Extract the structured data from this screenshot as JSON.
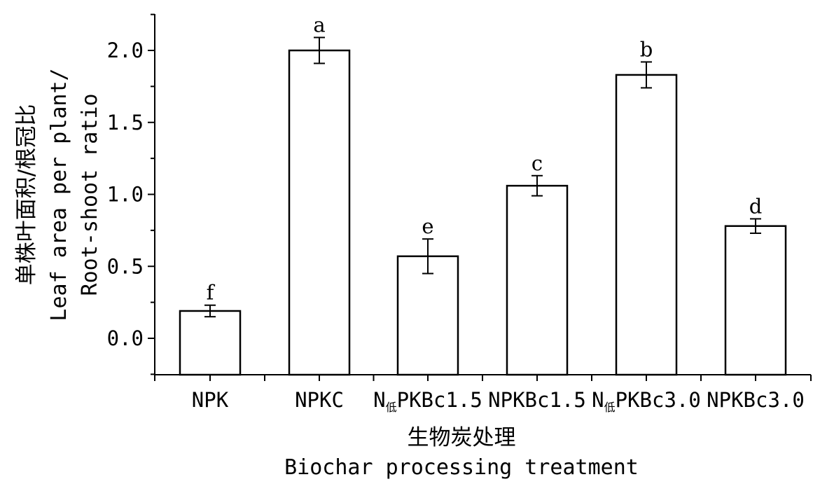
{
  "chart_data": {
    "type": "bar",
    "categories": [
      "NPK",
      "NPKC",
      "N低PKBc1.5",
      "NPKBc1.5",
      "N低PKBc3.0",
      "NPKBc3.0"
    ],
    "category_parts": [
      {
        "main": "NPK",
        "sub": "",
        "rest": ""
      },
      {
        "main": "NPKC",
        "sub": "",
        "rest": ""
      },
      {
        "main": "N",
        "sub": "低",
        "rest": "PKBc1.5"
      },
      {
        "main": "NPKBc1.5",
        "sub": "",
        "rest": ""
      },
      {
        "main": "N",
        "sub": "低",
        "rest": "PKBc3.0"
      },
      {
        "main": "NPKBc3.0",
        "sub": "",
        "rest": ""
      }
    ],
    "values": [
      0.19,
      2.0,
      0.57,
      1.06,
      1.83,
      0.78
    ],
    "errors": [
      0.04,
      0.09,
      0.12,
      0.07,
      0.09,
      0.05
    ],
    "significance": [
      "f",
      "a",
      "e",
      "c",
      "b",
      "d"
    ],
    "ylabel_lines": [
      "单株叶面积/根冠比",
      "Leaf area per plant/",
      "Root-shoot ratio"
    ],
    "xlabel_lines": [
      "生物炭处理",
      "Biochar processing treatment"
    ],
    "yticks": [
      "0.0",
      "0.5",
      "1.0",
      "1.5",
      "2.0"
    ],
    "ylim": [
      -0.25,
      2.25
    ],
    "grid": false,
    "bar_fill": "#ffffff",
    "bar_stroke": "#000000"
  }
}
